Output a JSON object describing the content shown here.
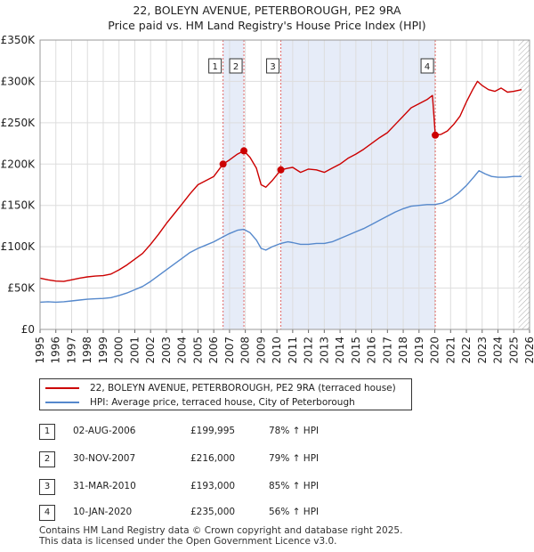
{
  "title": "22, BOLEYN AVENUE, PETERBOROUGH, PE2 9RA",
  "subtitle": "Price paid vs. HM Land Registry's House Price Index (HPI)",
  "chart_data": {
    "type": "line",
    "xlim": [
      1995,
      2026
    ],
    "ylim": [
      0,
      350000
    ],
    "y_ticks": [
      {
        "value": 0,
        "label": "£0"
      },
      {
        "value": 50000,
        "label": "£50K"
      },
      {
        "value": 100000,
        "label": "£100K"
      },
      {
        "value": 150000,
        "label": "£150K"
      },
      {
        "value": 200000,
        "label": "£200K"
      },
      {
        "value": 250000,
        "label": "£250K"
      },
      {
        "value": 300000,
        "label": "£300K"
      },
      {
        "value": 350000,
        "label": "£350K"
      }
    ],
    "x_ticks": [
      "1995",
      "1996",
      "1997",
      "1998",
      "1999",
      "2000",
      "2001",
      "2002",
      "2003",
      "2004",
      "2005",
      "2006",
      "2007",
      "2008",
      "2009",
      "2010",
      "2011",
      "2012",
      "2013",
      "2014",
      "2015",
      "2016",
      "2017",
      "2018",
      "2019",
      "2020",
      "2021",
      "2022",
      "2023",
      "2024",
      "2025",
      "2026"
    ],
    "grid": true,
    "colors": {
      "property": "#cc0000",
      "hpi": "#5588cc",
      "shade": "#e6ecf8",
      "event_line": "#e06666",
      "grid": "#dddddd"
    },
    "series": [
      {
        "name": "22, BOLEYN AVENUE, PETERBOROUGH, PE2 9RA (terraced house)",
        "color": "#cc0000",
        "points": [
          [
            1995.0,
            62000
          ],
          [
            1995.5,
            60000
          ],
          [
            1996.0,
            58500
          ],
          [
            1996.5,
            58000
          ],
          [
            1997.0,
            60000
          ],
          [
            1997.5,
            62000
          ],
          [
            1998.0,
            63500
          ],
          [
            1998.5,
            64500
          ],
          [
            1999.0,
            65000
          ],
          [
            1999.5,
            67000
          ],
          [
            2000.0,
            72000
          ],
          [
            2000.5,
            78000
          ],
          [
            2001.0,
            85000
          ],
          [
            2001.5,
            92000
          ],
          [
            2002.0,
            103000
          ],
          [
            2002.5,
            115000
          ],
          [
            2003.0,
            128000
          ],
          [
            2003.5,
            140000
          ],
          [
            2004.0,
            152000
          ],
          [
            2004.5,
            164000
          ],
          [
            2005.0,
            175000
          ],
          [
            2005.5,
            180000
          ],
          [
            2006.0,
            185000
          ],
          [
            2006.59,
            199995
          ],
          [
            2007.0,
            205000
          ],
          [
            2007.5,
            212000
          ],
          [
            2007.91,
            216000
          ],
          [
            2008.3,
            208000
          ],
          [
            2008.7,
            195000
          ],
          [
            2009.0,
            175000
          ],
          [
            2009.3,
            172000
          ],
          [
            2009.7,
            180000
          ],
          [
            2010.25,
            193000
          ],
          [
            2010.7,
            195000
          ],
          [
            2011.0,
            196000
          ],
          [
            2011.5,
            190000
          ],
          [
            2012.0,
            194000
          ],
          [
            2012.5,
            193000
          ],
          [
            2013.0,
            190000
          ],
          [
            2013.5,
            195000
          ],
          [
            2014.0,
            200000
          ],
          [
            2014.5,
            207000
          ],
          [
            2015.0,
            212000
          ],
          [
            2015.5,
            218000
          ],
          [
            2016.0,
            225000
          ],
          [
            2016.5,
            232000
          ],
          [
            2017.0,
            238000
          ],
          [
            2017.5,
            248000
          ],
          [
            2018.0,
            258000
          ],
          [
            2018.5,
            268000
          ],
          [
            2019.0,
            273000
          ],
          [
            2019.5,
            278000
          ],
          [
            2019.85,
            283000
          ],
          [
            2020.03,
            235000
          ],
          [
            2020.4,
            236000
          ],
          [
            2020.8,
            240000
          ],
          [
            2021.2,
            248000
          ],
          [
            2021.6,
            258000
          ],
          [
            2022.0,
            275000
          ],
          [
            2022.4,
            290000
          ],
          [
            2022.7,
            300000
          ],
          [
            2023.0,
            295000
          ],
          [
            2023.4,
            290000
          ],
          [
            2023.8,
            288000
          ],
          [
            2024.2,
            292000
          ],
          [
            2024.6,
            287000
          ],
          [
            2025.0,
            288000
          ],
          [
            2025.5,
            290000
          ]
        ]
      },
      {
        "name": "HPI: Average price, terraced house, City of Peterborough",
        "color": "#5588cc",
        "points": [
          [
            1995.0,
            33000
          ],
          [
            1995.5,
            33500
          ],
          [
            1996.0,
            33000
          ],
          [
            1996.5,
            33500
          ],
          [
            1997.0,
            34500
          ],
          [
            1997.5,
            35500
          ],
          [
            1998.0,
            36500
          ],
          [
            1998.5,
            37000
          ],
          [
            1999.0,
            37500
          ],
          [
            1999.5,
            38500
          ],
          [
            2000.0,
            41000
          ],
          [
            2000.5,
            44000
          ],
          [
            2001.0,
            48000
          ],
          [
            2001.5,
            52000
          ],
          [
            2002.0,
            58000
          ],
          [
            2002.5,
            65000
          ],
          [
            2003.0,
            72000
          ],
          [
            2003.5,
            79000
          ],
          [
            2004.0,
            86000
          ],
          [
            2004.5,
            93000
          ],
          [
            2005.0,
            98000
          ],
          [
            2005.5,
            102000
          ],
          [
            2006.0,
            106000
          ],
          [
            2006.59,
            112000
          ],
          [
            2007.0,
            116000
          ],
          [
            2007.5,
            120000
          ],
          [
            2007.91,
            121000
          ],
          [
            2008.3,
            117000
          ],
          [
            2008.7,
            108000
          ],
          [
            2009.0,
            98000
          ],
          [
            2009.3,
            96000
          ],
          [
            2009.7,
            100000
          ],
          [
            2010.25,
            104000
          ],
          [
            2010.7,
            106000
          ],
          [
            2011.0,
            105000
          ],
          [
            2011.5,
            103000
          ],
          [
            2012.0,
            103000
          ],
          [
            2012.5,
            104000
          ],
          [
            2013.0,
            104000
          ],
          [
            2013.5,
            106000
          ],
          [
            2014.0,
            110000
          ],
          [
            2014.5,
            114000
          ],
          [
            2015.0,
            118000
          ],
          [
            2015.5,
            122000
          ],
          [
            2016.0,
            127000
          ],
          [
            2016.5,
            132000
          ],
          [
            2017.0,
            137000
          ],
          [
            2017.5,
            142000
          ],
          [
            2018.0,
            146000
          ],
          [
            2018.5,
            149000
          ],
          [
            2019.0,
            150000
          ],
          [
            2019.5,
            151000
          ],
          [
            2020.0,
            151000
          ],
          [
            2020.5,
            153000
          ],
          [
            2021.0,
            158000
          ],
          [
            2021.5,
            165000
          ],
          [
            2022.0,
            174000
          ],
          [
            2022.5,
            185000
          ],
          [
            2022.8,
            192000
          ],
          [
            2023.2,
            188000
          ],
          [
            2023.6,
            185000
          ],
          [
            2024.0,
            184000
          ],
          [
            2024.5,
            184000
          ],
          [
            2025.0,
            185000
          ],
          [
            2025.5,
            185000
          ]
        ]
      }
    ],
    "events": [
      {
        "label": "1",
        "x": 2006.59,
        "value": 199995
      },
      {
        "label": "2",
        "x": 2007.91,
        "value": 216000
      },
      {
        "label": "3",
        "x": 2010.25,
        "value": 193000
      },
      {
        "label": "4",
        "x": 2020.03,
        "value": 235000
      }
    ],
    "shaded_ranges": [
      [
        2006.59,
        2007.91
      ],
      [
        2010.25,
        2020.03
      ]
    ],
    "hatched_from": 2025.3
  },
  "legend": {
    "property": "22, BOLEYN AVENUE, PETERBOROUGH, PE2 9RA (terraced house)",
    "hpi": "HPI: Average price, terraced house, City of Peterborough"
  },
  "transactions": [
    {
      "num": "1",
      "date": "02-AUG-2006",
      "price": "£199,995",
      "hpi": "78% ↑ HPI"
    },
    {
      "num": "2",
      "date": "30-NOV-2007",
      "price": "£216,000",
      "hpi": "79% ↑ HPI"
    },
    {
      "num": "3",
      "date": "31-MAR-2010",
      "price": "£193,000",
      "hpi": "85% ↑ HPI"
    },
    {
      "num": "4",
      "date": "10-JAN-2020",
      "price": "£235,000",
      "hpi": "56% ↑ HPI"
    }
  ],
  "footer": {
    "line1": "Contains HM Land Registry data © Crown copyright and database right 2025.",
    "line2": "This data is licensed under the Open Government Licence v3.0."
  }
}
